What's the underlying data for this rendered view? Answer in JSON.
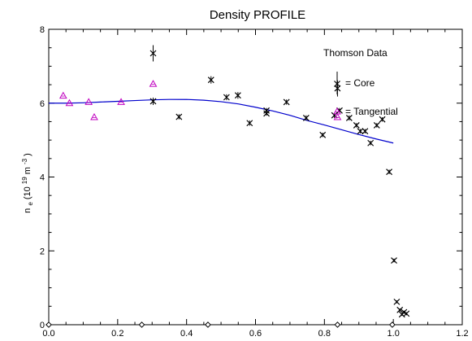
{
  "chart_data": {
    "type": "scatter",
    "title": "Density PROFILE",
    "ylabel": {
      "base": "n",
      "base_sub": "e",
      "unit_open": " (10",
      "unit_exp": "19",
      "unit_mid": " m",
      "unit_exp2": "-3",
      "unit_close": ")"
    },
    "xlim": [
      0,
      1.2
    ],
    "ylim": [
      0,
      8
    ],
    "x_ticks": [
      0.0,
      0.2,
      0.4,
      0.6,
      0.8,
      1.0,
      1.2
    ],
    "x_tick_labels": [
      "0.0",
      "0.2",
      "0.4",
      "0.6",
      "0.8",
      "1.0",
      "1.2"
    ],
    "y_ticks": [
      0,
      2,
      4,
      6,
      8
    ],
    "y_tick_labels": [
      "0",
      "2",
      "4",
      "6",
      "8"
    ],
    "grid": false,
    "annotation": "Thomson Data",
    "legend": [
      {
        "label": "= Core",
        "marker": "x-errorbar",
        "color": "#000000"
      },
      {
        "label": "= Tangential",
        "marker": "triangle",
        "color": "#c000c0"
      }
    ],
    "series": [
      {
        "name": "Core",
        "marker": "x",
        "color": "#000000",
        "points": [
          {
            "x": 0.303,
            "y": 7.35,
            "err": 0.22
          },
          {
            "x": 0.303,
            "y": 6.05,
            "err": 0.1
          },
          {
            "x": 0.378,
            "y": 5.63,
            "err": 0.07
          },
          {
            "x": 0.471,
            "y": 6.63,
            "err": 0.1
          },
          {
            "x": 0.516,
            "y": 6.16,
            "err": 0.08
          },
          {
            "x": 0.549,
            "y": 6.21,
            "err": 0.09
          },
          {
            "x": 0.583,
            "y": 5.46,
            "err": 0.07
          },
          {
            "x": 0.632,
            "y": 5.8,
            "err": 0.07
          },
          {
            "x": 0.632,
            "y": 5.72,
            "err": 0.06
          },
          {
            "x": 0.69,
            "y": 6.03,
            "err": 0.07
          },
          {
            "x": 0.747,
            "y": 5.6,
            "err": 0.07
          },
          {
            "x": 0.795,
            "y": 5.14,
            "err": 0.06
          },
          {
            "x": 0.829,
            "y": 5.67,
            "err": 0.07
          },
          {
            "x": 0.838,
            "y": 6.4,
            "err": 0.22
          },
          {
            "x": 0.844,
            "y": 5.8,
            "err": 0.07
          },
          {
            "x": 0.872,
            "y": 5.6,
            "err": 0.07
          },
          {
            "x": 0.893,
            "y": 5.4,
            "err": 0.06
          },
          {
            "x": 0.904,
            "y": 5.24,
            "err": 0.06
          },
          {
            "x": 0.918,
            "y": 5.24,
            "err": 0.06
          },
          {
            "x": 0.934,
            "y": 4.92,
            "err": 0.06
          },
          {
            "x": 0.952,
            "y": 5.4,
            "err": 0.06
          },
          {
            "x": 0.968,
            "y": 5.56,
            "err": 0.06
          },
          {
            "x": 0.988,
            "y": 4.14,
            "err": 0.06
          },
          {
            "x": 1.002,
            "y": 1.74,
            "err": 0.05
          },
          {
            "x": 1.01,
            "y": 0.62,
            "err": 0.04
          },
          {
            "x": 1.019,
            "y": 0.4,
            "err": 0.04
          },
          {
            "x": 1.025,
            "y": 0.28,
            "err": 0.04
          },
          {
            "x": 1.031,
            "y": 0.34,
            "err": 0.04
          },
          {
            "x": 1.038,
            "y": 0.3,
            "err": 0.04
          }
        ]
      },
      {
        "name": "Tangential",
        "marker": "triangle",
        "color": "#c000c0",
        "points": [
          {
            "x": 0.042,
            "y": 6.2
          },
          {
            "x": 0.06,
            "y": 6.0
          },
          {
            "x": 0.116,
            "y": 6.03
          },
          {
            "x": 0.132,
            "y": 5.62
          },
          {
            "x": 0.21,
            "y": 6.03
          },
          {
            "x": 0.303,
            "y": 6.52
          },
          {
            "x": 0.838,
            "y": 5.62
          }
        ]
      },
      {
        "name": "Fit",
        "type": "line",
        "color": "#0000cc",
        "x": [
          0.0,
          0.05,
          0.1,
          0.15,
          0.2,
          0.25,
          0.3,
          0.35,
          0.4,
          0.45,
          0.5,
          0.55,
          0.6,
          0.65,
          0.7,
          0.75,
          0.8,
          0.85,
          0.9,
          0.95,
          1.0
        ],
        "y": [
          6.0,
          6.0,
          6.01,
          6.03,
          6.05,
          6.07,
          6.09,
          6.1,
          6.1,
          6.08,
          6.04,
          5.98,
          5.89,
          5.79,
          5.67,
          5.53,
          5.41,
          5.28,
          5.15,
          5.03,
          4.92
        ]
      },
      {
        "name": "Edge markers",
        "marker": "diamond",
        "color": "#000000",
        "points": [
          {
            "x": 0.0,
            "y": 0.0
          },
          {
            "x": 0.27,
            "y": 0.0
          },
          {
            "x": 0.462,
            "y": 0.0
          },
          {
            "x": 0.838,
            "y": 0.0
          },
          {
            "x": 0.997,
            "y": 0.0
          }
        ]
      }
    ]
  }
}
